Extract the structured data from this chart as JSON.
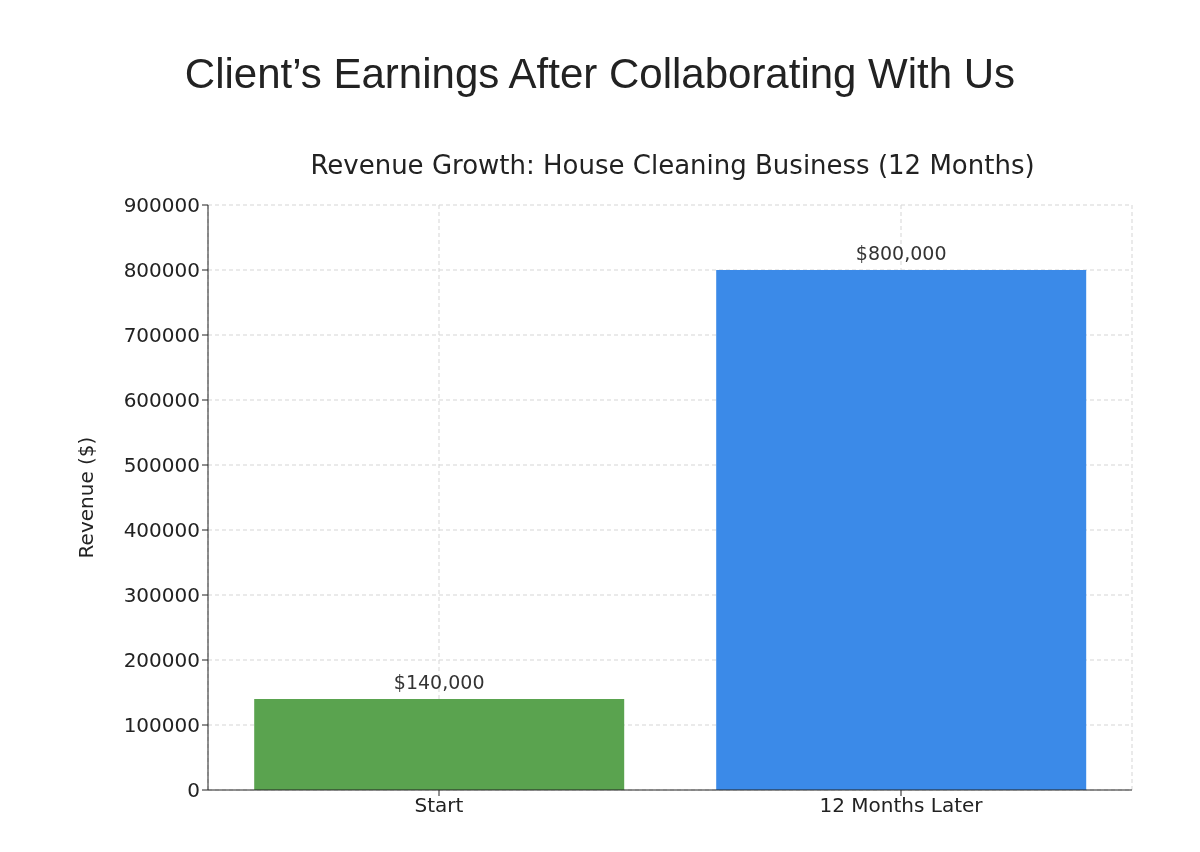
{
  "chart_data": {
    "type": "bar",
    "title": "Client’s Earnings After Collaborating With Us",
    "subtitle": "Revenue Growth: House Cleaning Business (12 Months)",
    "ylabel": "Revenue ($)",
    "categories": [
      "Start",
      "12 Months Later"
    ],
    "values": [
      140000,
      800000
    ],
    "colors": [
      "#5aa34f",
      "#3b8ae8"
    ],
    "value_labels": [
      "$140,000",
      "$800,000"
    ],
    "ylim": [
      0,
      900000
    ],
    "yticks": [
      0,
      100000,
      200000,
      300000,
      400000,
      500000,
      600000,
      700000,
      800000,
      900000
    ],
    "grid": true
  }
}
